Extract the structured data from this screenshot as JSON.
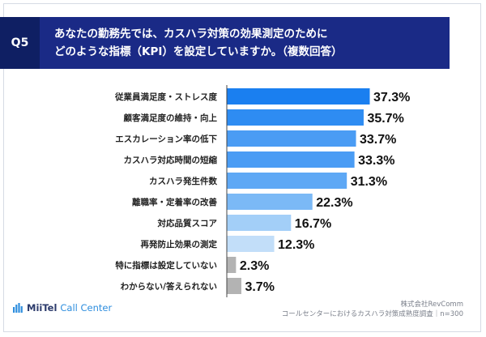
{
  "header": {
    "q_label": "Q5",
    "title_line1": "あなたの勤務先では、カスハラ対策の効果測定のために",
    "title_line2": "どのような指標（KPI）を設定していますか。（複数回答）"
  },
  "chart_data": {
    "type": "bar",
    "orientation": "horizontal",
    "title": "あなたの勤務先では、カスハラ対策の効果測定のためにどのような指標（KPI）を設定していますか。（複数回答）",
    "unit": "%",
    "xlim": [
      0,
      40
    ],
    "categories": [
      "従業員満足度・ストレス度",
      "顧客満足度の維持・向上",
      "エスカレーション率の低下",
      "カスハラ対応時間の短縮",
      "カスハラ発生件数",
      "離職率・定着率の改善",
      "対応品質スコア",
      "再発防止効果の測定",
      "特に指標は設定していない",
      "わからない/答えられない"
    ],
    "values": [
      37.3,
      35.7,
      33.7,
      33.3,
      31.3,
      22.3,
      16.7,
      12.3,
      2.3,
      3.7
    ],
    "value_labels": [
      "37.3%",
      "35.7%",
      "33.7%",
      "33.3%",
      "31.3%",
      "22.3%",
      "16.7%",
      "12.3%",
      "2.3%",
      "3.7%"
    ],
    "colors": [
      "#1a7ff0",
      "#2e8cf2",
      "#4a9cf4",
      "#4a9cf4",
      "#5ea8f5",
      "#7bb9f6",
      "#a3cff8",
      "#c2def9",
      "#b3b3b3",
      "#b3b3b3"
    ]
  },
  "footer": {
    "logo_brand": "MiiTel",
    "logo_product": "Call Center",
    "company": "株式会社RevComm",
    "survey": "コールセンターにおけるカスハラ対策成熟度調査｜n=300"
  },
  "colors": {
    "header_dark": "#0f1f63",
    "header": "#1a2a86",
    "axis": "#444444"
  }
}
